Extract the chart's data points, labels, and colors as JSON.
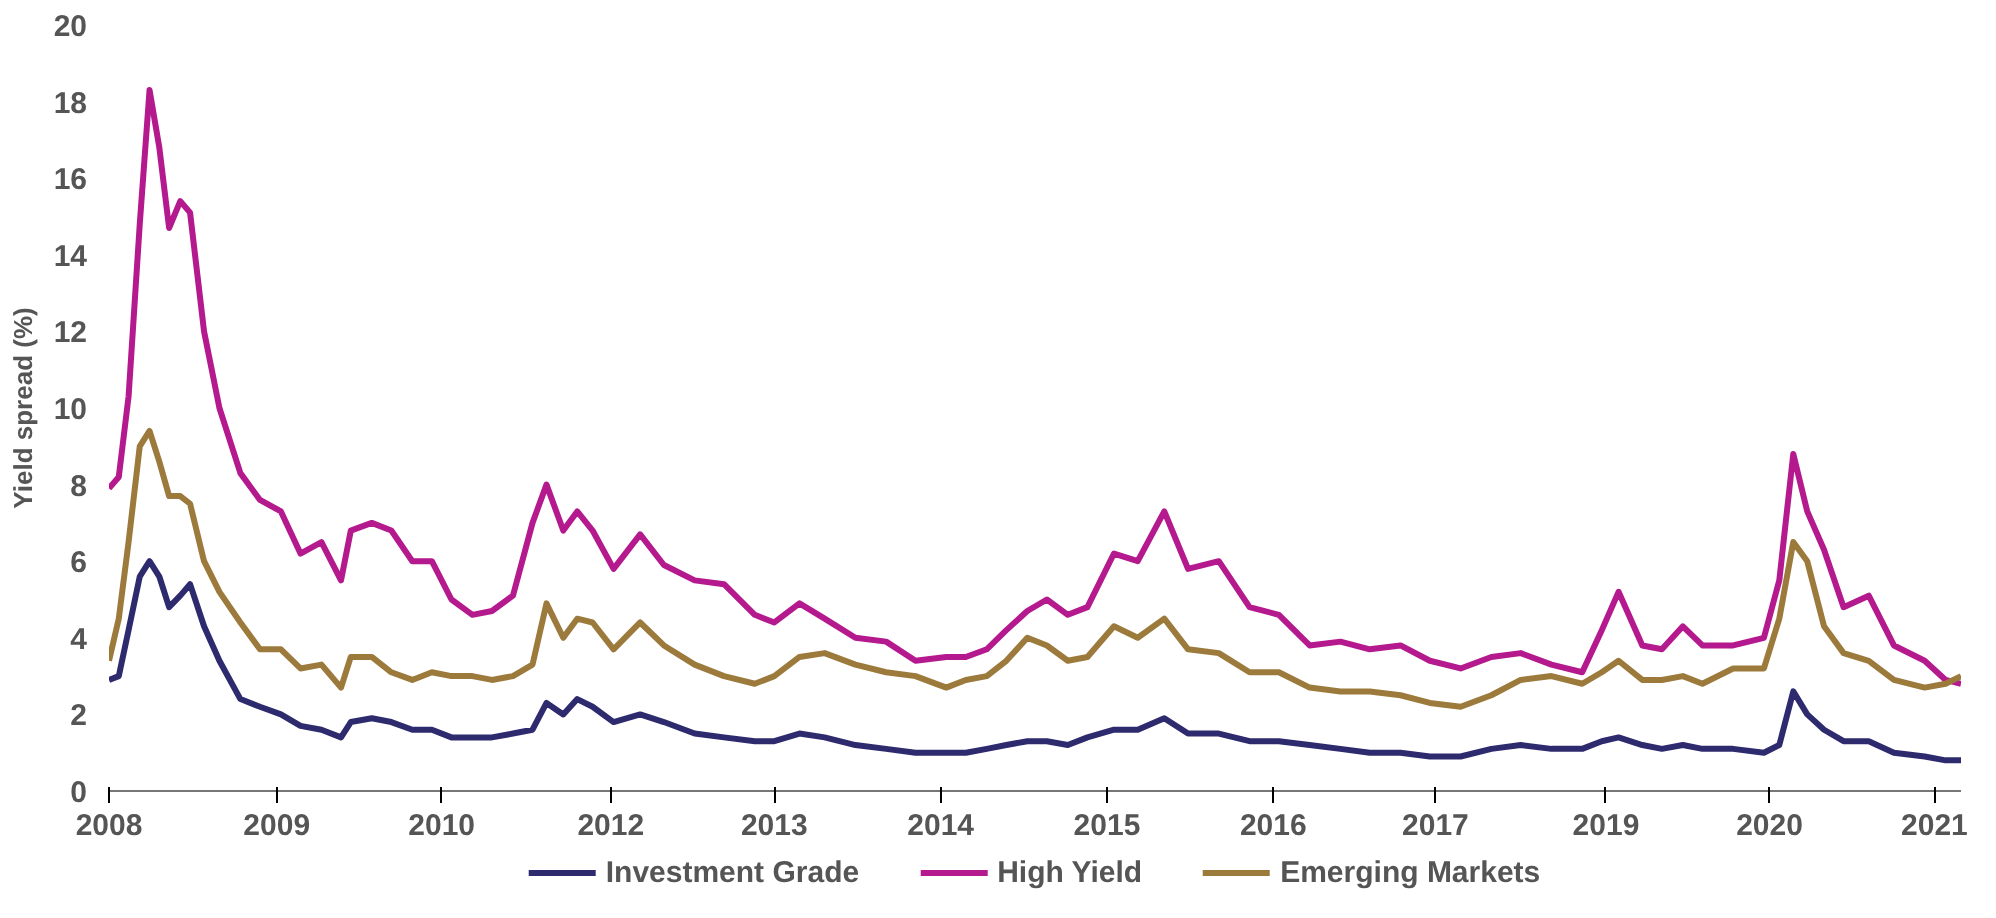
{
  "chart_data": {
    "type": "line",
    "ylabel": "Yield spread (%)",
    "legend": "bottom",
    "grid": false,
    "marker": "none",
    "line_style": "solid",
    "xlim": [
      2008,
      2021.25
    ],
    "ylim": [
      0,
      20
    ],
    "yticks": [
      0,
      2,
      4,
      6,
      8,
      10,
      12,
      14,
      16,
      18,
      20
    ],
    "xticks": [
      2008,
      {
        "value": 2009.2,
        "label": "2009"
      },
      {
        "value": 2010.38,
        "label": "2010"
      },
      {
        "value": 2011.59,
        "label": "2012"
      },
      {
        "value": 2012.76,
        "label": "2013"
      },
      {
        "value": 2013.95,
        "label": "2014"
      },
      {
        "value": 2015.14,
        "label": "2015"
      },
      {
        "value": 2016.33,
        "label": "2016"
      },
      {
        "value": 2017.49,
        "label": "2017"
      },
      {
        "value": 2018.71,
        "label": "2019"
      },
      {
        "value": 2019.88,
        "label": "2020"
      },
      {
        "value": 2021.06,
        "label": "2021"
      }
    ],
    "x": [
      2008.0,
      2008.07,
      2008.14,
      2008.22,
      2008.29,
      2008.36,
      2008.43,
      2008.51,
      2008.58,
      2008.68,
      2008.79,
      2008.94,
      2009.08,
      2009.23,
      2009.37,
      2009.52,
      2009.66,
      2009.73,
      2009.88,
      2010.02,
      2010.17,
      2010.31,
      2010.45,
      2010.6,
      2010.74,
      2010.89,
      2011.03,
      2011.13,
      2011.25,
      2011.35,
      2011.46,
      2011.61,
      2011.8,
      2011.97,
      2012.19,
      2012.4,
      2012.62,
      2012.76,
      2012.94,
      2013.12,
      2013.34,
      2013.56,
      2013.77,
      2013.99,
      2014.13,
      2014.28,
      2014.42,
      2014.57,
      2014.71,
      2014.86,
      2015.0,
      2015.19,
      2015.36,
      2015.55,
      2015.72,
      2015.94,
      2016.16,
      2016.37,
      2016.59,
      2016.81,
      2017.02,
      2017.24,
      2017.45,
      2017.67,
      2017.89,
      2018.1,
      2018.32,
      2018.54,
      2018.68,
      2018.8,
      2018.97,
      2019.11,
      2019.26,
      2019.4,
      2019.62,
      2019.84,
      2019.95,
      2020.05,
      2020.15,
      2020.27,
      2020.41,
      2020.59,
      2020.77,
      2020.99,
      2021.14,
      2021.25
    ],
    "series": [
      {
        "name": "Investment Grade",
        "color": "#2e2a6e",
        "values": [
          2.9,
          3.0,
          4.2,
          5.6,
          6.0,
          5.6,
          4.8,
          5.1,
          5.4,
          4.3,
          3.4,
          2.4,
          2.2,
          2.0,
          1.7,
          1.6,
          1.4,
          1.8,
          1.9,
          1.8,
          1.6,
          1.6,
          1.4,
          1.4,
          1.4,
          1.5,
          1.6,
          2.3,
          2.0,
          2.4,
          2.2,
          1.8,
          2.0,
          1.8,
          1.5,
          1.4,
          1.3,
          1.3,
          1.5,
          1.4,
          1.2,
          1.1,
          1.0,
          1.0,
          1.0,
          1.1,
          1.2,
          1.3,
          1.3,
          1.2,
          1.4,
          1.6,
          1.6,
          1.9,
          1.5,
          1.5,
          1.3,
          1.3,
          1.2,
          1.1,
          1.0,
          1.0,
          0.9,
          0.9,
          1.1,
          1.2,
          1.1,
          1.1,
          1.3,
          1.4,
          1.2,
          1.1,
          1.2,
          1.1,
          1.1,
          1.0,
          1.2,
          2.6,
          2.0,
          1.6,
          1.3,
          1.3,
          1.0,
          0.9,
          0.8,
          0.8
        ]
      },
      {
        "name": "High Yield",
        "color": "#b5198e",
        "values": [
          7.9,
          8.2,
          10.3,
          14.8,
          18.3,
          16.8,
          14.7,
          15.4,
          15.1,
          12.0,
          10.0,
          8.3,
          7.6,
          7.3,
          6.2,
          6.5,
          5.5,
          6.8,
          7.0,
          6.8,
          6.0,
          6.0,
          5.0,
          4.6,
          4.7,
          5.1,
          7.0,
          8.0,
          6.8,
          7.3,
          6.8,
          5.8,
          6.7,
          5.9,
          5.5,
          5.4,
          4.6,
          4.4,
          4.9,
          4.5,
          4.0,
          3.9,
          3.4,
          3.5,
          3.5,
          3.7,
          4.2,
          4.7,
          5.0,
          4.6,
          4.8,
          6.2,
          6.0,
          7.3,
          5.8,
          6.0,
          4.8,
          4.6,
          3.8,
          3.9,
          3.7,
          3.8,
          3.4,
          3.2,
          3.5,
          3.6,
          3.3,
          3.1,
          4.2,
          5.2,
          3.8,
          3.7,
          4.3,
          3.8,
          3.8,
          4.0,
          5.5,
          8.8,
          7.3,
          6.3,
          4.8,
          5.1,
          3.8,
          3.4,
          2.9,
          2.8
        ]
      },
      {
        "name": "Emerging Markets",
        "color": "#9c7a3c",
        "values": [
          3.4,
          4.5,
          6.5,
          9.0,
          9.4,
          8.6,
          7.7,
          7.7,
          7.5,
          6.0,
          5.2,
          4.4,
          3.7,
          3.7,
          3.2,
          3.3,
          2.7,
          3.5,
          3.5,
          3.1,
          2.9,
          3.1,
          3.0,
          3.0,
          2.9,
          3.0,
          3.3,
          4.9,
          4.0,
          4.5,
          4.4,
          3.7,
          4.4,
          3.8,
          3.3,
          3.0,
          2.8,
          3.0,
          3.5,
          3.6,
          3.3,
          3.1,
          3.0,
          2.7,
          2.9,
          3.0,
          3.4,
          4.0,
          3.8,
          3.4,
          3.5,
          4.3,
          4.0,
          4.5,
          3.7,
          3.6,
          3.1,
          3.1,
          2.7,
          2.6,
          2.6,
          2.5,
          2.3,
          2.2,
          2.5,
          2.9,
          3.0,
          2.8,
          3.1,
          3.4,
          2.9,
          2.9,
          3.0,
          2.8,
          3.2,
          3.2,
          4.5,
          6.5,
          6.0,
          4.3,
          3.6,
          3.4,
          2.9,
          2.7,
          2.8,
          3.0
        ]
      }
    ]
  }
}
